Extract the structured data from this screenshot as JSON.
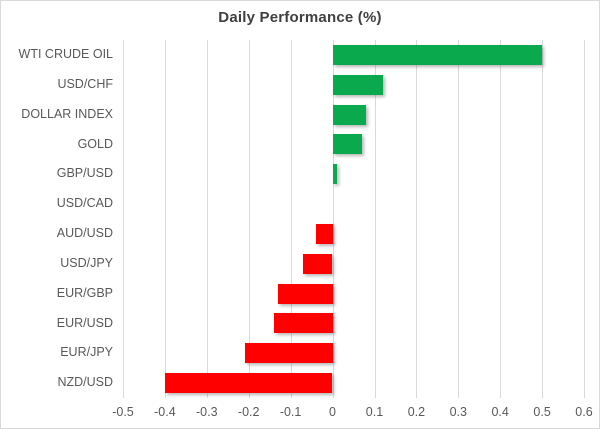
{
  "title": "Daily Performance (%)",
  "chart_data": {
    "type": "bar",
    "orientation": "horizontal",
    "title": "Daily Performance (%)",
    "categories": [
      "WTI CRUDE OIL",
      "USD/CHF",
      "DOLLAR INDEX",
      "GOLD",
      "GBP/USD",
      "USD/CAD",
      "AUD/USD",
      "USD/JPY",
      "EUR/GBP",
      "EUR/USD",
      "EUR/JPY",
      "NZD/USD"
    ],
    "values": [
      0.5,
      0.12,
      0.08,
      0.07,
      0.01,
      0.0,
      -0.04,
      -0.07,
      -0.13,
      -0.14,
      -0.21,
      -0.4
    ],
    "xlabel": "",
    "ylabel": "",
    "xlim": [
      -0.5,
      0.6
    ],
    "x_tick_labels": [
      "-0.5",
      "-0.4",
      "-0.3",
      "-0.2",
      "-0.1",
      "0",
      "0.1",
      "0.2",
      "0.3",
      "0.4",
      "0.5",
      "0.6"
    ],
    "x_tick_values": [
      -0.5,
      -0.4,
      -0.3,
      -0.2,
      -0.1,
      0,
      0.1,
      0.2,
      0.3,
      0.4,
      0.5,
      0.6
    ],
    "grid": true,
    "legend": false,
    "colors": {
      "positive_bar": "#0ba94e",
      "negative_bar": "#ff0000",
      "gridline": "#d9d9d9",
      "axis_text": "#595959",
      "title_text": "#404040",
      "background": "#ffffff"
    }
  }
}
